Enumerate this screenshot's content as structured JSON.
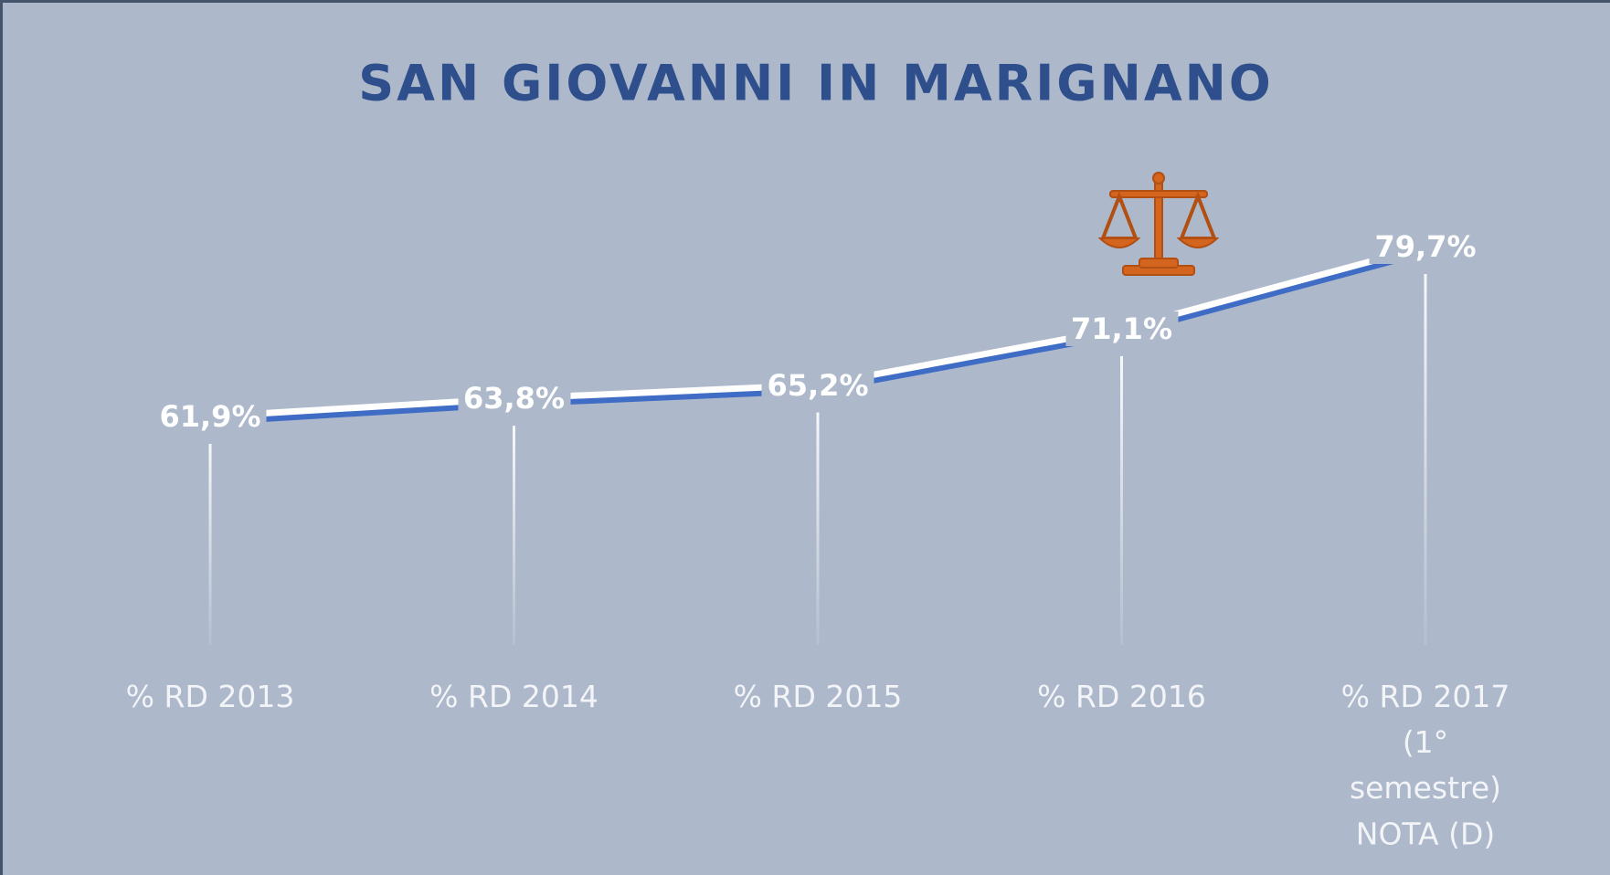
{
  "chart_data": {
    "type": "line",
    "title": "SAN GIOVANNI IN MARIGNANO",
    "categories": [
      "% RD 2013",
      "% RD 2014",
      "% RD 2015",
      "% RD 2016",
      "% RD 2017\n(1° semestre)"
    ],
    "series": [
      {
        "name": "% RD",
        "color": "#ffffff",
        "values": [
          61.9,
          63.8,
          65.2,
          71.1,
          79.7
        ],
        "value_labels": [
          "61,9%",
          "63,8%",
          "65,2%",
          "71,1%",
          "79,7%"
        ]
      }
    ],
    "annotation": "NOTA (D)"
  }
}
